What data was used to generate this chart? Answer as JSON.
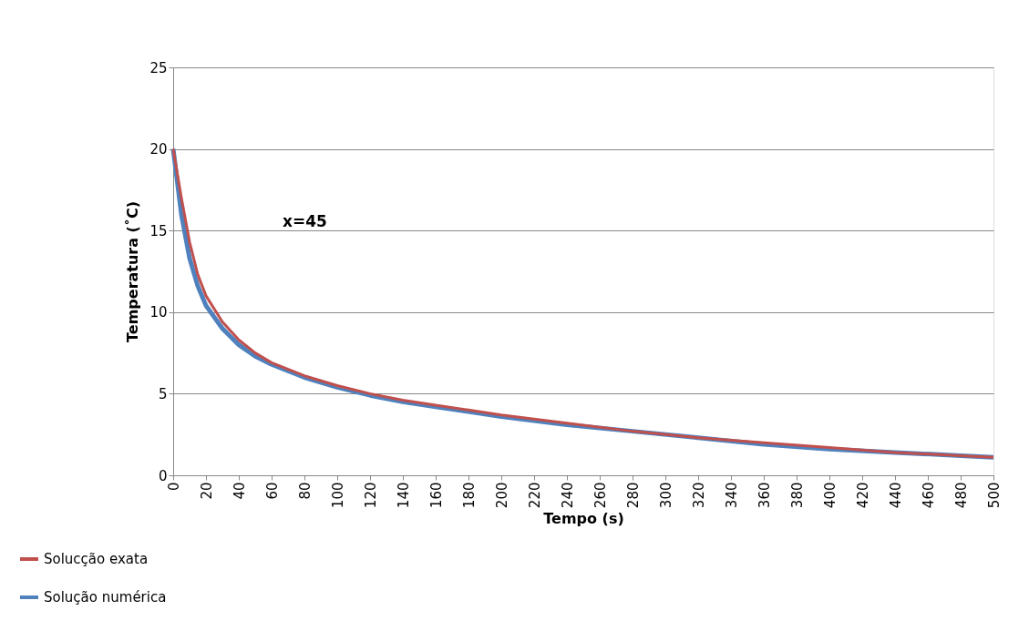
{
  "chart_data": {
    "type": "line",
    "xlabel": "Tempo (s)",
    "ylabel": "Temperatura (˚C)",
    "annotations": [
      "x=45"
    ],
    "x": [
      0,
      5,
      10,
      15,
      20,
      30,
      40,
      50,
      60,
      80,
      100,
      120,
      140,
      160,
      180,
      200,
      240,
      280,
      320,
      360,
      400,
      440,
      480,
      500
    ],
    "series": [
      {
        "name": "Solucção exata",
        "color": "#c0504d",
        "values": [
          20,
          17,
          14.3,
          12.3,
          11,
          9.4,
          8.3,
          7.5,
          6.9,
          6.1,
          5.5,
          5,
          4.6,
          4.3,
          4,
          3.7,
          3.2,
          2.7,
          2.3,
          2,
          1.7,
          1.4,
          1.2,
          1.1
        ]
      },
      {
        "name": "Solução numérica",
        "color": "#4f81bd",
        "values": [
          20,
          16,
          13.3,
          11.6,
          10.4,
          9,
          8,
          7.3,
          6.8,
          6,
          5.4,
          4.9,
          4.5,
          4.2,
          3.9,
          3.6,
          3.1,
          2.7,
          2.3,
          1.9,
          1.6,
          1.4,
          1.2,
          1.1
        ]
      }
    ],
    "xlim": [
      0,
      500
    ],
    "xticks": [
      0,
      20,
      40,
      60,
      80,
      100,
      120,
      140,
      160,
      180,
      200,
      220,
      240,
      260,
      280,
      300,
      320,
      340,
      360,
      380,
      400,
      420,
      440,
      460,
      480,
      500
    ],
    "ylim": [
      0,
      25
    ],
    "yticks": [
      0,
      5,
      10,
      15,
      20,
      25
    ],
    "grid": "y",
    "legend": "bottom left",
    "marker": "none",
    "line_style": "solid"
  }
}
